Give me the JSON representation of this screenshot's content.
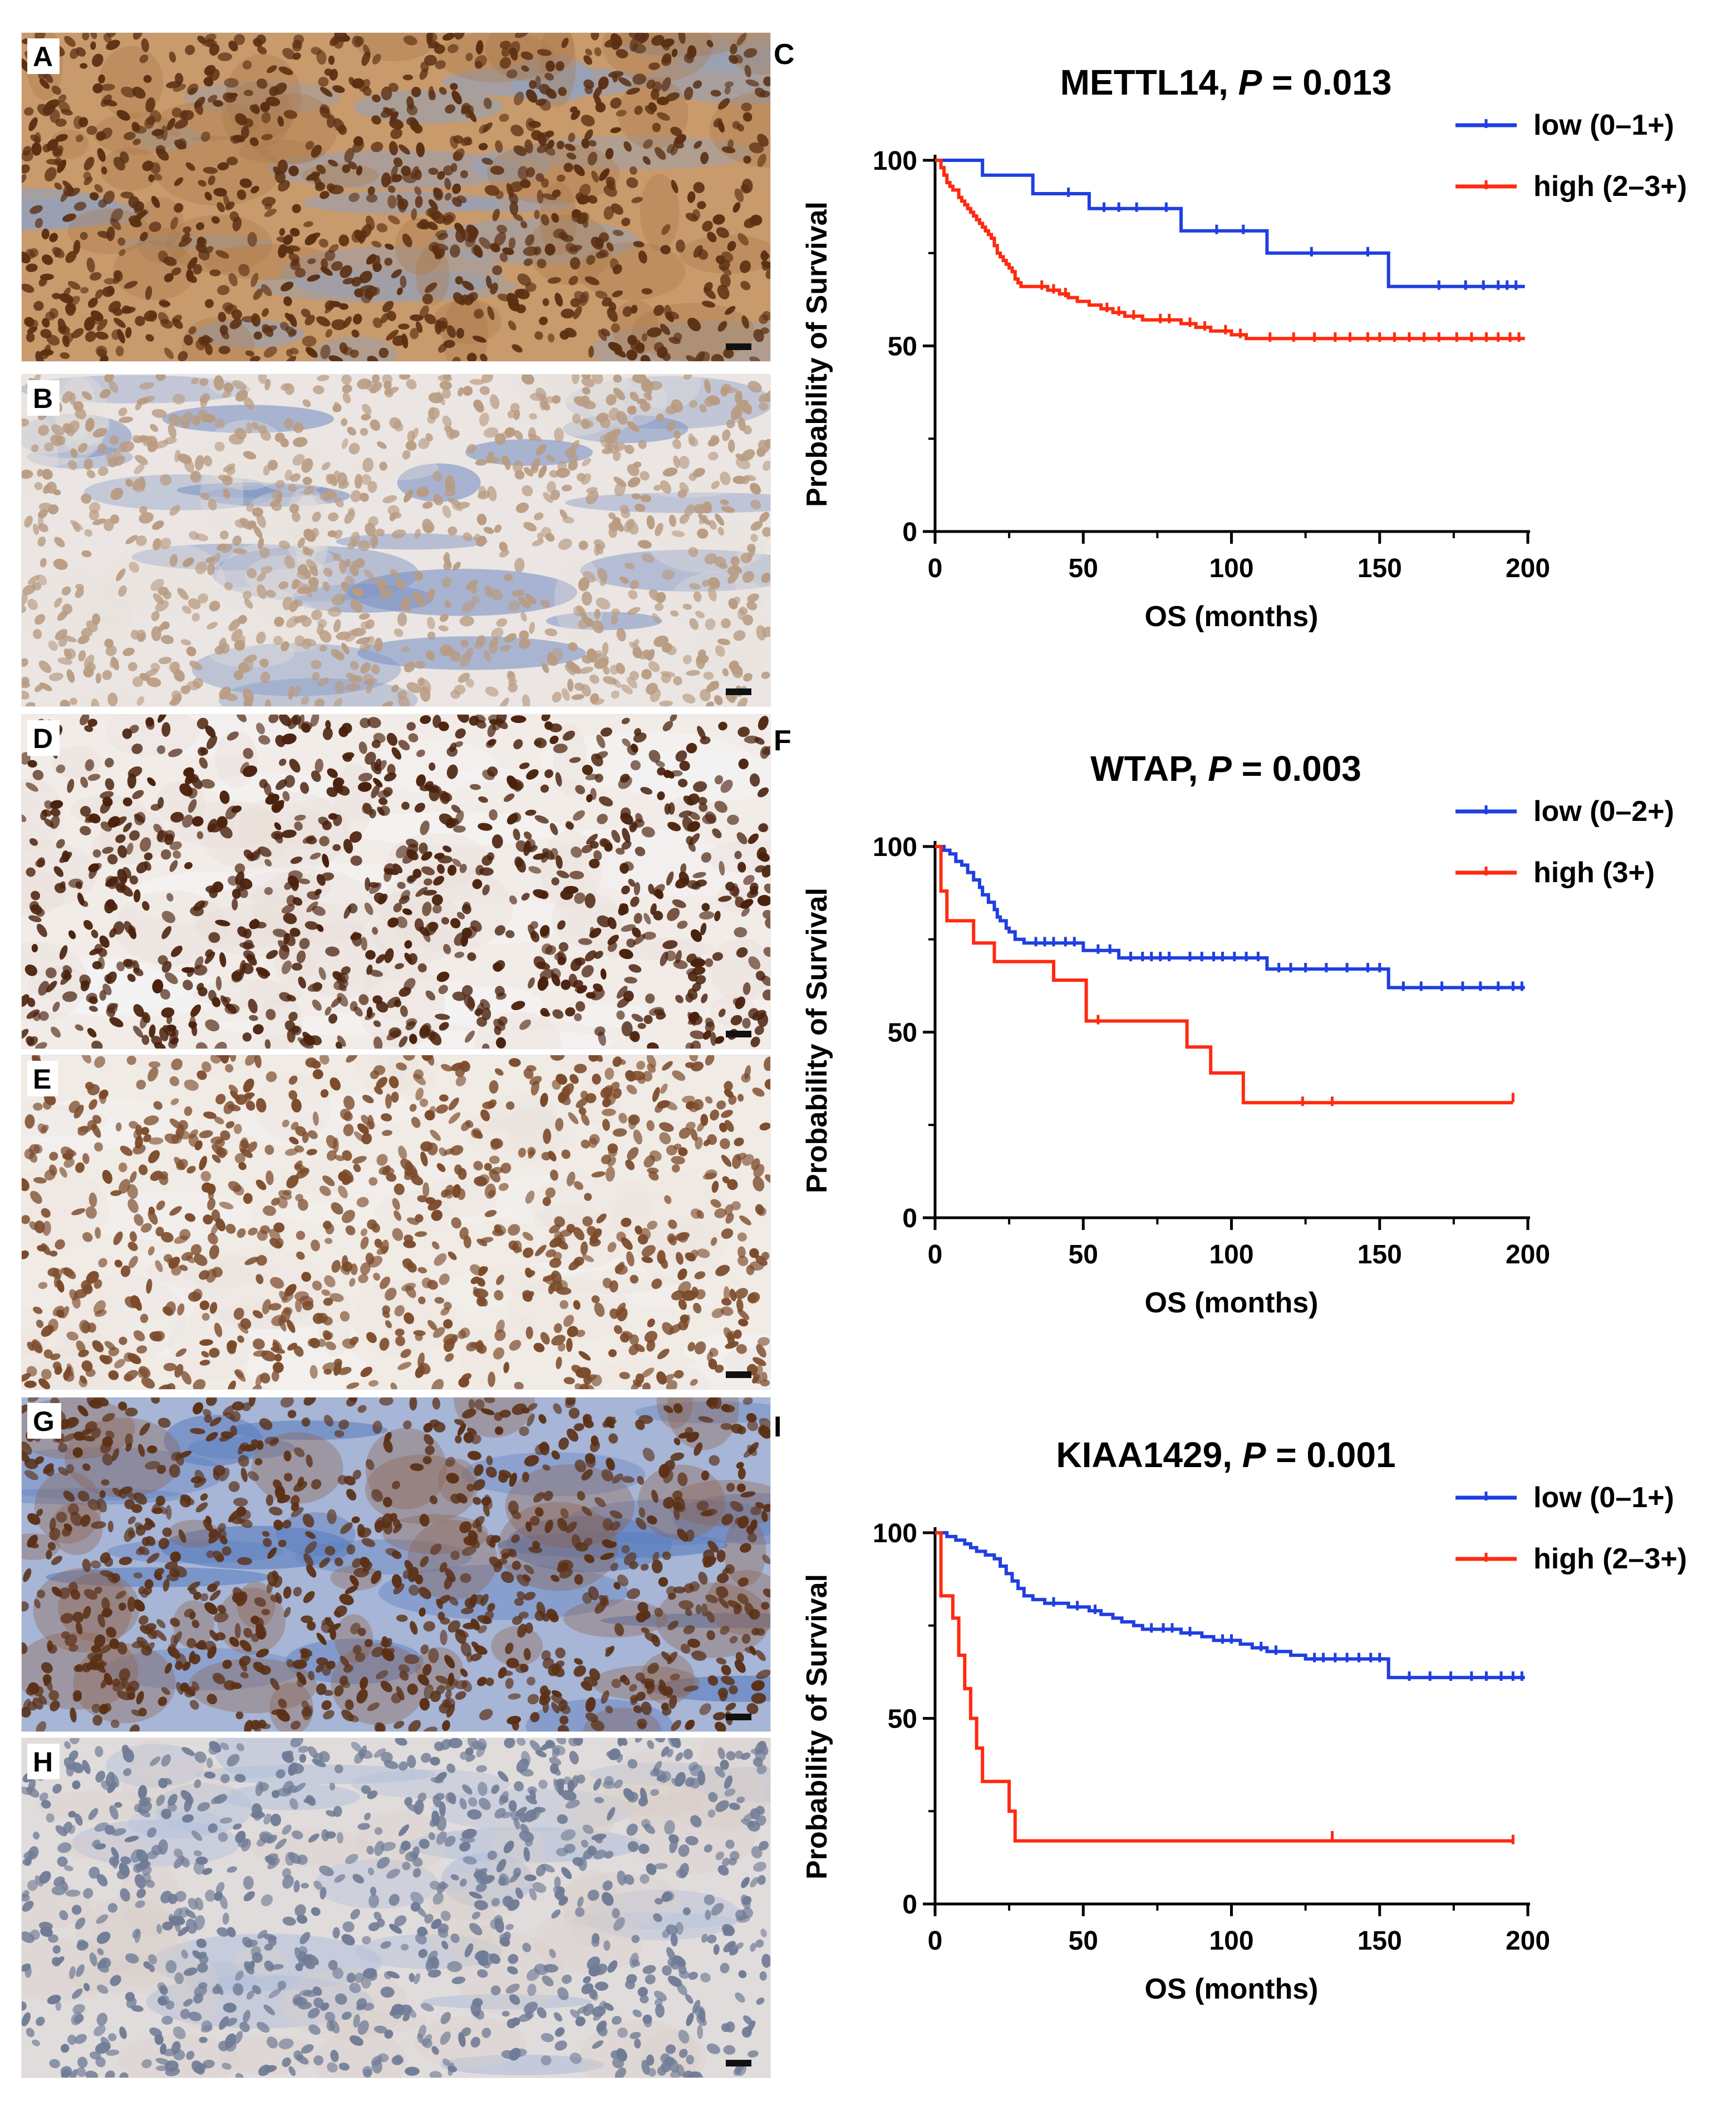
{
  "micrographs": [
    {
      "label": "A",
      "stain": "strong diffuse brown nuclear and cytoplasmic",
      "nucleus": "#5a2f12",
      "cytoplasm": "#a9774a",
      "background": "#c99a6c",
      "stroma": "#8ea3c4"
    },
    {
      "label": "B",
      "stain": "weak pale nuclear",
      "nucleus": "#b89b82",
      "cytoplasm": "#e7e1dc",
      "background": "#ebe6e3",
      "stroma": "#7f95c4"
    },
    {
      "label": "D",
      "stain": "strong dark brown nuclear",
      "nucleus": "#4a210c",
      "cytoplasm": "#e9ded6",
      "background": "#f2ece8",
      "stroma": "#f4f4f6"
    },
    {
      "label": "E",
      "stain": "moderate brown nuclear",
      "nucleus": "#7b4a2a",
      "cytoplasm": "#ece3dc",
      "background": "#f1ebe6",
      "stroma": "#f3f1f0"
    },
    {
      "label": "G",
      "stain": "brown nuclear nests in blue stroma",
      "nucleus": "#5a3016",
      "cytoplasm": "#8b5f47",
      "background": "#a7b5d6",
      "stroma": "#5c7fbf"
    },
    {
      "label": "H",
      "stain": "weak blue-grey nuclear",
      "nucleus": "#6f7b95",
      "cytoplasm": "#d9cfc9",
      "background": "#e1dcdc",
      "stroma": "#b3c0da"
    }
  ],
  "charts": [
    {
      "panel": "C",
      "title_gene": "METTL14, ",
      "title_p": "P",
      "title_value": " = 0.013",
      "legend": [
        "low (0–1+)",
        "high (2–3+)"
      ]
    },
    {
      "panel": "F",
      "title_gene": "WTAP, ",
      "title_p": "P",
      "title_value": " = 0.003",
      "legend": [
        "low (0–2+)",
        "high (3+)"
      ]
    },
    {
      "panel": "I",
      "title_gene": "KIAA1429, ",
      "title_p": "P",
      "title_value": " = 0.001",
      "legend": [
        "low (0–1+)",
        "high (2–3+)"
      ]
    }
  ],
  "colors": {
    "low": "#1f3fe0",
    "high": "#ff2a10"
  },
  "chart_data": [
    {
      "type": "line",
      "subtype": "kaplan-meier",
      "title": "METTL14, P = 0.013",
      "xlabel": "OS (months)",
      "ylabel": "Probability of Survival",
      "xlim": [
        0,
        200
      ],
      "ylim": [
        0,
        100
      ],
      "xticks": [
        0,
        50,
        100,
        150,
        200
      ],
      "yticks": [
        0,
        50,
        100
      ],
      "legend_position": "top-right",
      "series": [
        {
          "name": "low (0–1+)",
          "color": "#1f3fe0",
          "steps": [
            [
              0,
              100
            ],
            [
              16,
              96
            ],
            [
              33,
              91
            ],
            [
              52,
              87
            ],
            [
              83,
              81
            ],
            [
              112,
              75
            ],
            [
              153,
              66
            ],
            [
              199,
              66
            ]
          ],
          "censors": [
            [
              45,
              91
            ],
            [
              57,
              87
            ],
            [
              62,
              87
            ],
            [
              68,
              87
            ],
            [
              78,
              87
            ],
            [
              95,
              81
            ],
            [
              104,
              81
            ],
            [
              127,
              75
            ],
            [
              146,
              75
            ],
            [
              170,
              66
            ],
            [
              179,
              66
            ],
            [
              185,
              66
            ],
            [
              190,
              66
            ],
            [
              193,
              66
            ],
            [
              196,
              66
            ]
          ]
        },
        {
          "name": "high (2–3+)",
          "color": "#ff2a10",
          "steps": [
            [
              0,
              100
            ],
            [
              2,
              98
            ],
            [
              3,
              96
            ],
            [
              4,
              94
            ],
            [
              5,
              93
            ],
            [
              6,
              92
            ],
            [
              8,
              90
            ],
            [
              9,
              89
            ],
            [
              10,
              88
            ],
            [
              11,
              87
            ],
            [
              12,
              86
            ],
            [
              13,
              85
            ],
            [
              14,
              84
            ],
            [
              15,
              83
            ],
            [
              16,
              82
            ],
            [
              17,
              81
            ],
            [
              18,
              80
            ],
            [
              19,
              79
            ],
            [
              20,
              77
            ],
            [
              21,
              75
            ],
            [
              22,
              74
            ],
            [
              23,
              73
            ],
            [
              24,
              72
            ],
            [
              25,
              71
            ],
            [
              26,
              70
            ],
            [
              27,
              68
            ],
            [
              28,
              67
            ],
            [
              29,
              66
            ],
            [
              33,
              66
            ],
            [
              38,
              65
            ],
            [
              42,
              64
            ],
            [
              45,
              63
            ],
            [
              48,
              62
            ],
            [
              52,
              61
            ],
            [
              56,
              60
            ],
            [
              60,
              59
            ],
            [
              64,
              58
            ],
            [
              70,
              57
            ],
            [
              74,
              57
            ],
            [
              83,
              56
            ],
            [
              88,
              55
            ],
            [
              93,
              54
            ],
            [
              96,
              54
            ],
            [
              100,
              53
            ],
            [
              105,
              52
            ],
            [
              199,
              52
            ]
          ],
          "censors": [
            [
              36,
              66
            ],
            [
              40,
              65
            ],
            [
              44,
              64
            ],
            [
              58,
              60
            ],
            [
              62,
              59
            ],
            [
              67,
              58
            ],
            [
              76,
              57
            ],
            [
              79,
              57
            ],
            [
              86,
              56
            ],
            [
              91,
              55
            ],
            [
              98,
              54
            ],
            [
              103,
              53
            ],
            [
              113,
              52
            ],
            [
              121,
              52
            ],
            [
              128,
              52
            ],
            [
              135,
              52
            ],
            [
              140,
              52
            ],
            [
              146,
              52
            ],
            [
              150,
              52
            ],
            [
              155,
              52
            ],
            [
              160,
              52
            ],
            [
              165,
              52
            ],
            [
              170,
              52
            ],
            [
              176,
              52
            ],
            [
              181,
              52
            ],
            [
              186,
              52
            ],
            [
              190,
              52
            ],
            [
              194,
              52
            ],
            [
              197,
              52
            ]
          ]
        }
      ]
    },
    {
      "type": "line",
      "subtype": "kaplan-meier",
      "title": "WTAP, P = 0.003",
      "xlabel": "OS (months)",
      "ylabel": "Probability of Survival",
      "xlim": [
        0,
        200
      ],
      "ylim": [
        0,
        100
      ],
      "xticks": [
        0,
        50,
        100,
        150,
        200
      ],
      "yticks": [
        0,
        50,
        100
      ],
      "legend_position": "top-right",
      "series": [
        {
          "name": "low (0–2+)",
          "color": "#1f3fe0",
          "steps": [
            [
              0,
              100
            ],
            [
              3,
              99
            ],
            [
              5,
              98
            ],
            [
              7,
              96
            ],
            [
              9,
              95
            ],
            [
              11,
              93
            ],
            [
              13,
              91
            ],
            [
              15,
              89
            ],
            [
              16,
              87
            ],
            [
              18,
              85
            ],
            [
              20,
              83
            ],
            [
              21,
              81
            ],
            [
              22,
              80
            ],
            [
              24,
              78
            ],
            [
              25,
              77
            ],
            [
              27,
              75
            ],
            [
              30,
              74
            ],
            [
              50,
              72
            ],
            [
              62,
              70
            ],
            [
              83,
              70
            ],
            [
              112,
              67
            ],
            [
              153,
              62
            ],
            [
              199,
              62
            ]
          ],
          "censors": [
            [
              34,
              74
            ],
            [
              37,
              74
            ],
            [
              40,
              74
            ],
            [
              44,
              74
            ],
            [
              47,
              74
            ],
            [
              55,
              72
            ],
            [
              59,
              72
            ],
            [
              66,
              70
            ],
            [
              70,
              70
            ],
            [
              73,
              70
            ],
            [
              76,
              70
            ],
            [
              79,
              70
            ],
            [
              86,
              70
            ],
            [
              90,
              70
            ],
            [
              94,
              70
            ],
            [
              97,
              70
            ],
            [
              101,
              70
            ],
            [
              105,
              70
            ],
            [
              109,
              70
            ],
            [
              116,
              67
            ],
            [
              120,
              67
            ],
            [
              125,
              67
            ],
            [
              132,
              67
            ],
            [
              139,
              67
            ],
            [
              146,
              67
            ],
            [
              150,
              67
            ],
            [
              158,
              62
            ],
            [
              164,
              62
            ],
            [
              171,
              62
            ],
            [
              178,
              62
            ],
            [
              184,
              62
            ],
            [
              190,
              62
            ],
            [
              195,
              62
            ],
            [
              198,
              62
            ]
          ]
        },
        {
          "name": "high (3+)",
          "color": "#ff2a10",
          "steps": [
            [
              0,
              100
            ],
            [
              2,
              88
            ],
            [
              4,
              80
            ],
            [
              13,
              74
            ],
            [
              20,
              69
            ],
            [
              40,
              64
            ],
            [
              51,
              53
            ],
            [
              85,
              46
            ],
            [
              93,
              39
            ],
            [
              104,
              31
            ],
            [
              195,
              31
            ]
          ],
          "censors": [
            [
              55,
              53
            ],
            [
              124,
              31
            ],
            [
              134,
              31
            ],
            [
              195,
              32
            ]
          ]
        }
      ]
    },
    {
      "type": "line",
      "subtype": "kaplan-meier",
      "title": "KIAA1429, P = 0.001",
      "xlabel": "OS (months)",
      "ylabel": "Probability of Survival",
      "xlim": [
        0,
        200
      ],
      "ylim": [
        0,
        100
      ],
      "xticks": [
        0,
        50,
        100,
        150,
        200
      ],
      "yticks": [
        0,
        50,
        100
      ],
      "legend_position": "top-right",
      "series": [
        {
          "name": "low (0–1+)",
          "color": "#1f3fe0",
          "steps": [
            [
              0,
              100
            ],
            [
              4,
              99
            ],
            [
              7,
              98
            ],
            [
              10,
              97
            ],
            [
              12,
              96
            ],
            [
              14,
              95
            ],
            [
              17,
              94
            ],
            [
              20,
              93
            ],
            [
              22,
              91
            ],
            [
              24,
              89
            ],
            [
              26,
              87
            ],
            [
              28,
              85
            ],
            [
              30,
              83
            ],
            [
              33,
              82
            ],
            [
              37,
              81
            ],
            [
              45,
              80
            ],
            [
              52,
              79
            ],
            [
              56,
              78
            ],
            [
              60,
              77
            ],
            [
              63,
              76
            ],
            [
              67,
              75
            ],
            [
              70,
              74
            ],
            [
              83,
              73
            ],
            [
              90,
              72
            ],
            [
              94,
              71
            ],
            [
              103,
              70
            ],
            [
              107,
              69
            ],
            [
              112,
              68
            ],
            [
              120,
              67
            ],
            [
              125,
              66
            ],
            [
              153,
              61
            ],
            [
              199,
              61
            ]
          ],
          "censors": [
            [
              40,
              81
            ],
            [
              48,
              80
            ],
            [
              54,
              79
            ],
            [
              73,
              74
            ],
            [
              77,
              74
            ],
            [
              80,
              74
            ],
            [
              86,
              73
            ],
            [
              97,
              71
            ],
            [
              100,
              71
            ],
            [
              110,
              69
            ],
            [
              115,
              68
            ],
            [
              128,
              66
            ],
            [
              131,
              66
            ],
            [
              135,
              66
            ],
            [
              139,
              66
            ],
            [
              143,
              66
            ],
            [
              147,
              66
            ],
            [
              150,
              66
            ],
            [
              160,
              61
            ],
            [
              167,
              61
            ],
            [
              174,
              61
            ],
            [
              181,
              61
            ],
            [
              186,
              61
            ],
            [
              191,
              61
            ],
            [
              195,
              61
            ],
            [
              198,
              61
            ]
          ]
        },
        {
          "name": "high (2–3+)",
          "color": "#ff2a10",
          "steps": [
            [
              0,
              100
            ],
            [
              2,
              83
            ],
            [
              6,
              77
            ],
            [
              8,
              67
            ],
            [
              10,
              58
            ],
            [
              12,
              50
            ],
            [
              14,
              42
            ],
            [
              16,
              33
            ],
            [
              25,
              25
            ],
            [
              27,
              17
            ],
            [
              195,
              17
            ]
          ],
          "censors": [
            [
              134,
              18
            ],
            [
              195,
              17
            ]
          ]
        }
      ]
    }
  ]
}
